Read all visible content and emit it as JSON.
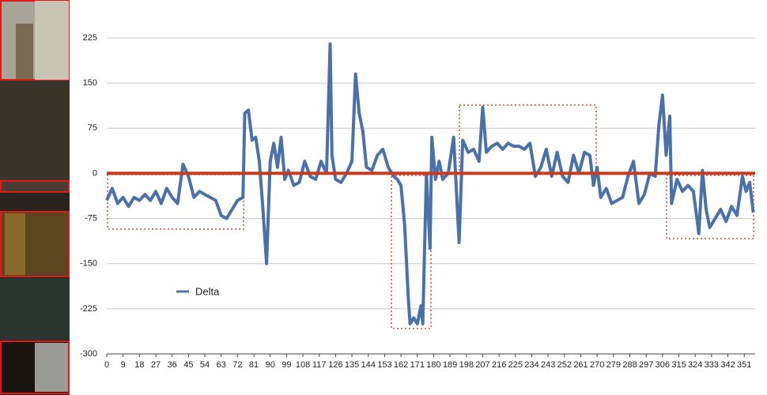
{
  "chart_data": {
    "type": "line",
    "x": [
      0,
      3,
      6,
      9,
      12,
      15,
      18,
      21,
      24,
      27,
      30,
      33,
      36,
      39,
      42,
      45,
      48,
      51,
      54,
      57,
      60,
      63,
      66,
      69,
      72,
      75,
      76,
      78,
      80,
      82,
      84,
      86,
      88,
      90,
      92,
      94,
      96,
      98,
      100,
      103,
      106,
      109,
      112,
      115,
      118,
      121,
      123,
      124,
      126,
      129,
      132,
      135,
      137,
      139,
      141,
      143,
      146,
      149,
      152,
      155,
      158,
      160,
      162,
      164,
      166,
      167,
      169,
      171,
      173,
      174,
      176,
      178,
      179,
      181,
      183,
      185,
      188,
      191,
      194,
      196,
      199,
      202,
      205,
      207,
      209,
      212,
      215,
      218,
      221,
      224,
      227,
      230,
      233,
      236,
      239,
      242,
      245,
      248,
      251,
      254,
      257,
      260,
      263,
      266,
      268,
      270,
      272,
      275,
      278,
      281,
      284,
      287,
      290,
      293,
      296,
      299,
      302,
      304,
      306,
      308,
      310,
      311,
      314,
      317,
      320,
      323,
      326,
      328,
      330,
      332,
      335,
      338,
      341,
      344,
      347,
      350,
      352,
      354,
      356
    ],
    "series": [
      {
        "name": "Delta",
        "color": "#4a72a8",
        "values": [
          -45,
          -25,
          -50,
          -40,
          -55,
          -40,
          -45,
          -35,
          -45,
          -30,
          -50,
          -25,
          -40,
          -50,
          15,
          -5,
          -40,
          -30,
          -35,
          -40,
          -45,
          -70,
          -75,
          -60,
          -45,
          -40,
          100,
          105,
          55,
          60,
          20,
          -60,
          -150,
          20,
          50,
          10,
          60,
          -10,
          5,
          -20,
          -15,
          20,
          -5,
          -10,
          20,
          0,
          215,
          30,
          -10,
          -15,
          0,
          20,
          165,
          100,
          70,
          10,
          5,
          30,
          40,
          10,
          -5,
          -10,
          -20,
          -85,
          -205,
          -250,
          -240,
          -250,
          -220,
          -250,
          0,
          -125,
          60,
          -10,
          20,
          -10,
          0,
          60,
          -115,
          55,
          35,
          40,
          20,
          110,
          35,
          45,
          50,
          40,
          50,
          45,
          45,
          40,
          50,
          -5,
          10,
          40,
          -5,
          35,
          -5,
          -15,
          30,
          0,
          35,
          30,
          -20,
          10,
          -40,
          -25,
          -50,
          -45,
          -40,
          -5,
          20,
          -50,
          -35,
          0,
          -5,
          80,
          130,
          30,
          95,
          -50,
          -10,
          -30,
          -20,
          -30,
          -100,
          5,
          -60,
          -90,
          -75,
          -60,
          -80,
          -55,
          -70,
          -5,
          -30,
          -15,
          -65
        ]
      }
    ],
    "reference_line": {
      "value": 0,
      "color": "#c8391e"
    },
    "xlim": [
      0,
      357
    ],
    "xticks": [
      0,
      9,
      18,
      27,
      36,
      45,
      54,
      63,
      72,
      81,
      90,
      99,
      108,
      117,
      126,
      135,
      144,
      153,
      162,
      171,
      180,
      189,
      198,
      207,
      216,
      225,
      234,
      243,
      252,
      261,
      270,
      279,
      288,
      297,
      306,
      315,
      324,
      333,
      342,
      351
    ],
    "ylim": [
      -300,
      225
    ],
    "yticks": [
      -300,
      -225,
      -150,
      -75,
      0,
      75,
      150,
      225
    ],
    "grid": true
  }
}
